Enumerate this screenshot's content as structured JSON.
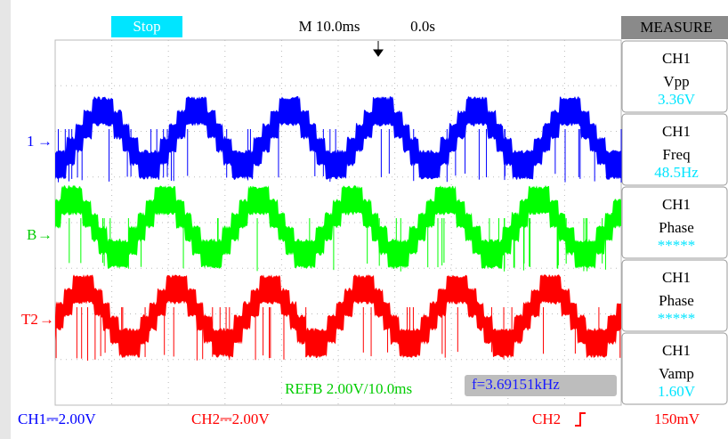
{
  "top_bar": {
    "status": "Stop",
    "timebase": "M 10.0ms",
    "position": "0.0s"
  },
  "measure": {
    "title": "MEASURE",
    "items": [
      {
        "channel": "CH1",
        "name": "Vpp",
        "value": "3.36V"
      },
      {
        "channel": "CH1",
        "name": "Freq",
        "value": "48.5Hz"
      },
      {
        "channel": "CH1",
        "name": "Phase",
        "value": "*****"
      },
      {
        "channel": "CH1",
        "name": "Phase",
        "value": "*****"
      },
      {
        "channel": "CH1",
        "name": "Vamp",
        "value": "1.60V"
      }
    ]
  },
  "markers": [
    "1",
    "B",
    "T2"
  ],
  "reference": "REFB 2.00V/10.0ms",
  "frequency": "f=3.69151kHz",
  "status_bar": {
    "ch1": "CH1⎓2.00V",
    "ch2": "CH2⎓2.00V",
    "trigger_source": "CH2",
    "trigger_level": "150mV"
  }
}
